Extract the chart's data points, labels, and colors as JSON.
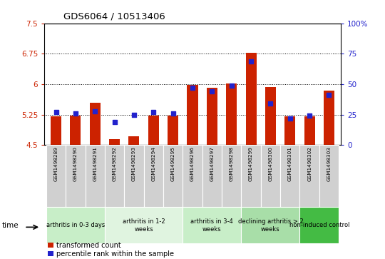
{
  "title": "GDS6064 / 10513406",
  "samples": [
    "GSM1498289",
    "GSM1498290",
    "GSM1498291",
    "GSM1498292",
    "GSM1498293",
    "GSM1498294",
    "GSM1498295",
    "GSM1498296",
    "GSM1498297",
    "GSM1498298",
    "GSM1498299",
    "GSM1498300",
    "GSM1498301",
    "GSM1498302",
    "GSM1498303"
  ],
  "bar_values": [
    5.2,
    5.22,
    5.55,
    4.65,
    4.72,
    5.22,
    5.22,
    5.98,
    5.92,
    6.01,
    6.78,
    5.93,
    5.2,
    5.2,
    5.85
  ],
  "blue_values_pct": [
    27,
    26,
    28,
    19,
    25,
    27,
    26,
    47,
    44,
    49,
    69,
    34,
    22,
    24,
    41
  ],
  "ylim_left": [
    4.5,
    7.5
  ],
  "ylim_right": [
    0,
    100
  ],
  "yticks_left": [
    4.5,
    5.25,
    6.0,
    6.75,
    7.5
  ],
  "ytick_labels_left": [
    "4.5",
    "5.25",
    "6",
    "6.75",
    "7.5"
  ],
  "yticks_right": [
    0,
    25,
    50,
    75,
    100
  ],
  "ytick_labels_right": [
    "0",
    "25",
    "50",
    "75",
    "100%"
  ],
  "groups": [
    {
      "label": "arthritis in 0-3 days",
      "start": 0,
      "end": 3,
      "color": "#c8eec8"
    },
    {
      "label": "arthritis in 1-2\nweeks",
      "start": 3,
      "end": 7,
      "color": "#e0f4e0"
    },
    {
      "label": "arthritis in 3-4\nweeks",
      "start": 7,
      "end": 10,
      "color": "#c8eec8"
    },
    {
      "label": "declining arthritis > 2\nweeks",
      "start": 10,
      "end": 13,
      "color": "#a8dea8"
    },
    {
      "label": "non-induced control",
      "start": 13,
      "end": 15,
      "color": "#44bb44"
    }
  ],
  "bar_color": "#cc2200",
  "blue_color": "#2222cc",
  "left_axis_color": "#cc2200",
  "right_axis_color": "#2222cc",
  "bg_color": "#ffffff",
  "legend_items": [
    "transformed count",
    "percentile rank within the sample"
  ],
  "bar_width": 0.55
}
